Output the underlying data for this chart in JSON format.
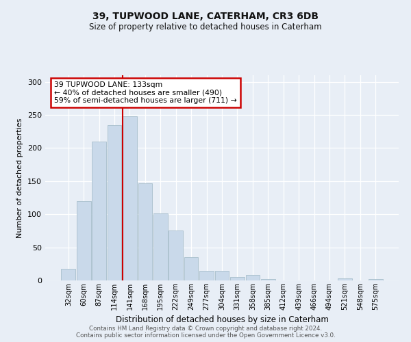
{
  "title": "39, TUPWOOD LANE, CATERHAM, CR3 6DB",
  "subtitle": "Size of property relative to detached houses in Caterham",
  "xlabel": "Distribution of detached houses by size in Caterham",
  "ylabel": "Number of detached properties",
  "bin_labels": [
    "32sqm",
    "60sqm",
    "87sqm",
    "114sqm",
    "141sqm",
    "168sqm",
    "195sqm",
    "222sqm",
    "249sqm",
    "277sqm",
    "304sqm",
    "331sqm",
    "358sqm",
    "385sqm",
    "412sqm",
    "439sqm",
    "466sqm",
    "494sqm",
    "521sqm",
    "548sqm",
    "575sqm"
  ],
  "bar_heights": [
    18,
    120,
    210,
    235,
    248,
    147,
    101,
    75,
    35,
    14,
    14,
    5,
    8,
    2,
    0,
    0,
    0,
    0,
    3,
    0,
    2
  ],
  "bar_color": "#c9d9ea",
  "bar_edge_color": "#a8becc",
  "vline_color": "#cc0000",
  "annotation_text": "39 TUPWOOD LANE: 133sqm\n← 40% of detached houses are smaller (490)\n59% of semi-detached houses are larger (711) →",
  "annotation_box_color": "#ffffff",
  "annotation_box_edge": "#cc0000",
  "ylim": [
    0,
    310
  ],
  "yticks": [
    0,
    50,
    100,
    150,
    200,
    250,
    300
  ],
  "footer1": "Contains HM Land Registry data © Crown copyright and database right 2024.",
  "footer2": "Contains public sector information licensed under the Open Government Licence v3.0.",
  "bg_color": "#e8eef6",
  "plot_bg_color": "#e8eef6"
}
